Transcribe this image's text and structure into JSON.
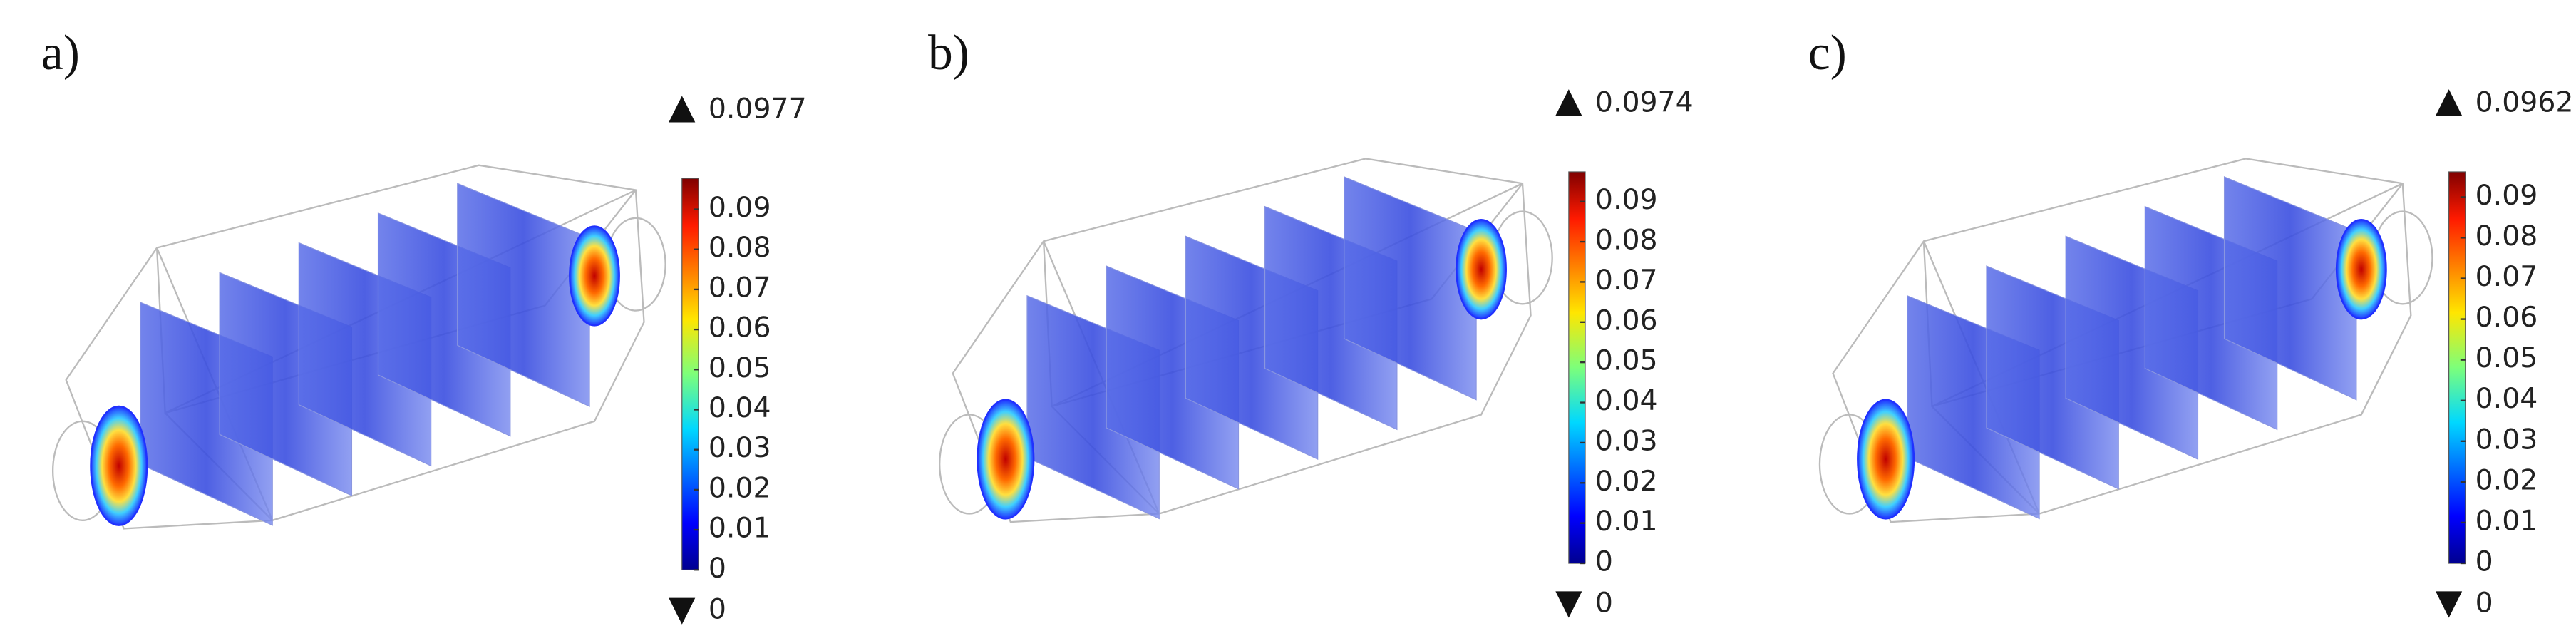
{
  "panels": [
    {
      "label": "a)",
      "max": 0.0977,
      "min": 0,
      "colorbar_ticks": [
        0.09,
        0.08,
        0.07,
        0.06,
        0.05,
        0.04,
        0.03,
        0.02,
        0.01,
        0
      ]
    },
    {
      "label": "b)",
      "max": 0.0974,
      "min": 0,
      "colorbar_ticks": [
        0.09,
        0.08,
        0.07,
        0.06,
        0.05,
        0.04,
        0.03,
        0.02,
        0.01,
        0
      ]
    },
    {
      "label": "c)",
      "max": 0.0962,
      "min": 0,
      "colorbar_ticks": [
        0.09,
        0.08,
        0.07,
        0.06,
        0.05,
        0.04,
        0.03,
        0.02,
        0.01,
        0
      ]
    }
  ]
}
